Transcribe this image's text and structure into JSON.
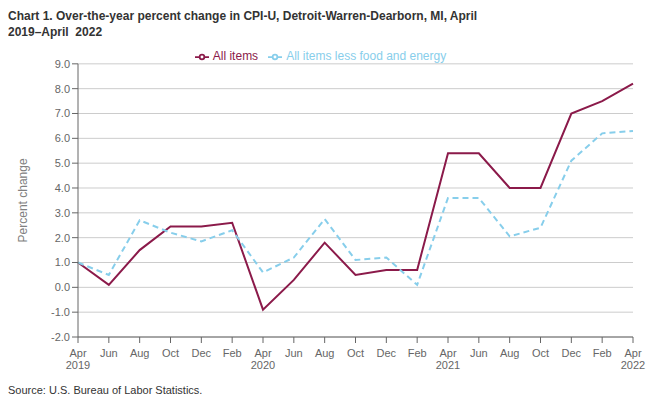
{
  "chart_data": {
    "type": "line",
    "title": "Chart 1. Over-the-year percent change in CPI-U, Detroit-Warren-Dearborn, MI, April\n2019–April  2022",
    "ylabel": "Percent change",
    "annotations": [
      "Source: U.S. Bureau of Labor Statistics."
    ],
    "categories": [
      "Apr\n2019",
      "Jun",
      "Aug",
      "Oct",
      "Dec",
      "Feb",
      "Apr\n2020",
      "Jun",
      "Aug",
      "Oct",
      "Dec",
      "Feb",
      "Apr\n2021",
      "Jun",
      "Aug",
      "Oct",
      "Dec",
      "Feb",
      "Apr\n2022"
    ],
    "series": [
      {
        "name": "All items",
        "color": "#8B1A4A",
        "line_style": "solid",
        "values": [
          1.0,
          0.1,
          1.5,
          2.45,
          2.45,
          2.6,
          -0.9,
          0.3,
          1.8,
          0.5,
          0.7,
          0.7,
          5.4,
          5.4,
          4.0,
          4.0,
          7.0,
          7.5,
          8.2
        ]
      },
      {
        "name": "All items less food and energy",
        "color": "#87CEEB",
        "line_style": "dashed",
        "values": [
          1.0,
          0.5,
          2.7,
          2.2,
          1.85,
          2.3,
          0.6,
          1.2,
          2.75,
          1.1,
          1.2,
          0.1,
          3.6,
          3.6,
          2.05,
          2.4,
          5.1,
          6.2,
          6.3
        ]
      }
    ],
    "ylim": [
      -2.0,
      9.0
    ],
    "yticks": [
      {
        "value": -2.0,
        "label": "-2.0"
      },
      {
        "value": -1.0,
        "label": "-1.0"
      },
      {
        "value": 0.0,
        "label": "0.0"
      },
      {
        "value": 1.0,
        "label": "1.0"
      },
      {
        "value": 2.0,
        "label": "2.0"
      },
      {
        "value": 3.0,
        "label": "3.0"
      },
      {
        "value": 4.0,
        "label": "4.0"
      },
      {
        "value": 5.0,
        "label": "5.0"
      },
      {
        "value": 6.0,
        "label": "6.0"
      },
      {
        "value": 7.0,
        "label": "7.0"
      },
      {
        "value": 8.0,
        "label": "8.0"
      },
      {
        "value": 9.0,
        "label": "9.0"
      }
    ],
    "grid": true,
    "legend": "top"
  }
}
